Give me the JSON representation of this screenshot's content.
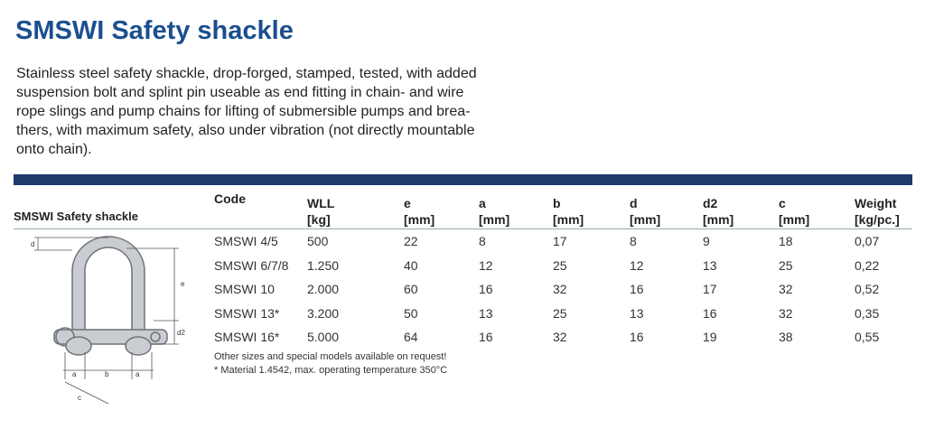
{
  "header": {
    "title": "SMSWI Safety shackle"
  },
  "description": [
    "Stainless steel safety shackle, drop-forged, stamped, tested, with added",
    "suspension bolt and splint pin useable as end fitting in chain- and wire",
    "rope slings and pump chains for lifting of submersible pumps  and brea-",
    "thers, with maximum safety, also under vibration (not directly mountable",
    "onto chain)."
  ],
  "section_label": "SMSWI Safety shackle",
  "diagram": {
    "labels": [
      "d",
      "e",
      "d2",
      "a",
      "b",
      "a",
      "c"
    ]
  },
  "table": {
    "columns": [
      [
        "Code"
      ],
      [
        "WLL",
        "[kg]"
      ],
      [
        "e",
        "[mm]"
      ],
      [
        "a",
        "[mm]"
      ],
      [
        "b",
        "[mm]"
      ],
      [
        "d",
        "[mm]"
      ],
      [
        "d2",
        "[mm]"
      ],
      [
        "c",
        "[mm]"
      ],
      [
        "Weight",
        "[kg/pc.]"
      ]
    ],
    "rows": [
      [
        "SMSWI 4/5",
        "500",
        "22",
        "8",
        "17",
        "8",
        "9",
        "18",
        "0,07"
      ],
      [
        "SMSWI 6/7/8",
        "1.250",
        "40",
        "12",
        "25",
        "12",
        "13",
        "25",
        "0,22"
      ],
      [
        "SMSWI 10",
        "2.000",
        "60",
        "16",
        "32",
        "16",
        "17",
        "32",
        "0,52"
      ],
      [
        "SMSWI 13*",
        "3.200",
        "50",
        "13",
        "25",
        "13",
        "16",
        "32",
        "0,35"
      ],
      [
        "SMSWI 16*",
        "5.000",
        "64",
        "16",
        "32",
        "16",
        "19",
        "38",
        "0,55"
      ]
    ]
  },
  "footnotes": [
    "Other sizes and special models available on request!",
    "* Material 1.4542, max. operating temperature 350°C"
  ]
}
